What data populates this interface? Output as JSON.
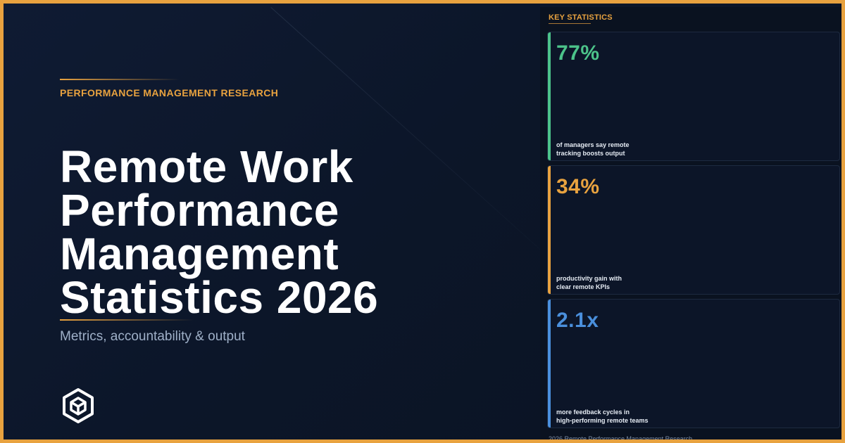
{
  "eyebrow": "PERFORMANCE MANAGEMENT RESEARCH",
  "title_lines": [
    "Remote Work",
    "Performance",
    "Management",
    "Statistics 2026"
  ],
  "subtitle": "Metrics, accountability & output",
  "logo_icon": "hexagon-cube-logo-icon",
  "panel": {
    "label": "KEY STATISTICS",
    "footer": "2026 Remote Performance Management Research"
  },
  "stats": [
    {
      "value": "77%",
      "line1": "of managers say remote",
      "line2": "tracking boosts output",
      "color": "#4cc38a"
    },
    {
      "value": "34%",
      "line1": "productivity gain with",
      "line2": "clear remote KPIs",
      "color": "#e8a23f"
    },
    {
      "value": "2.1x",
      "line1": "more feedback cycles in",
      "line2": "high-performing remote teams",
      "color": "#4a8fdc"
    }
  ],
  "colors": {
    "accent": "#e8a23f",
    "background": "#0c1629",
    "panel_background": "#0a1220"
  }
}
